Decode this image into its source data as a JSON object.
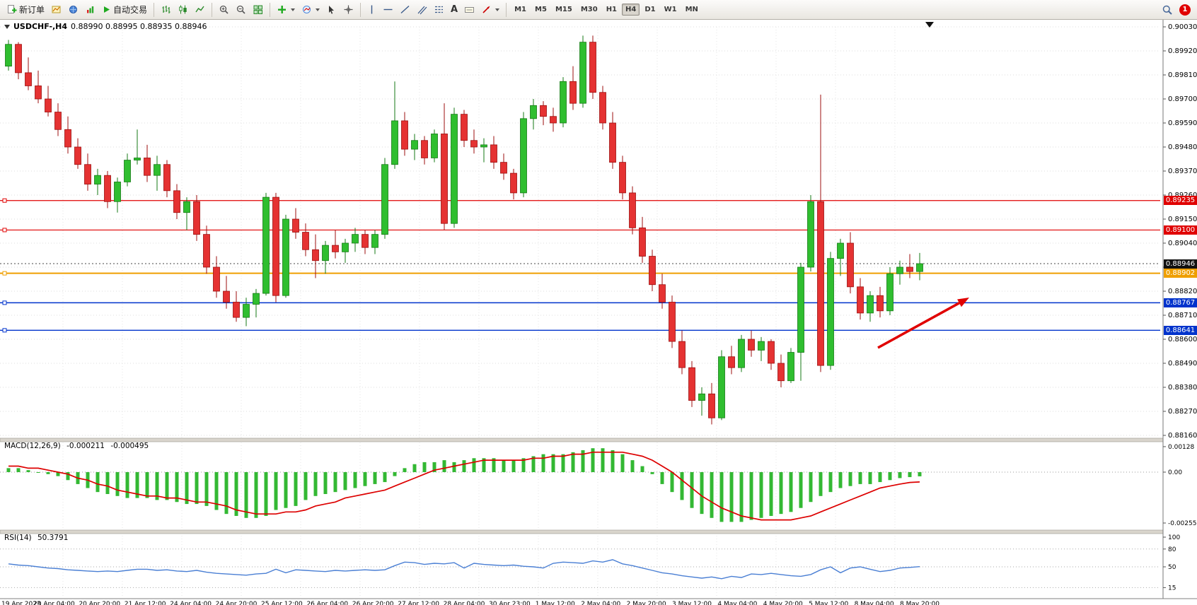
{
  "toolbar": {
    "new_order": "新订单",
    "auto_trading": "自动交易",
    "text_tool": "A",
    "timeframes": [
      "M1",
      "M5",
      "M15",
      "M30",
      "H1",
      "H4",
      "D1",
      "W1",
      "MN"
    ],
    "active_timeframe": "H4",
    "notification_count": "1"
  },
  "chart": {
    "title": "USDCHF-,H4",
    "ohlc": "0.88990 0.88995 0.88935 0.88946"
  },
  "levels": {
    "r1": {
      "label": "0.89235",
      "price": 0.89235,
      "color": "#e00000",
      "width": 1.2
    },
    "r2": {
      "label": "0.89100",
      "price": 0.891,
      "color": "#e00000",
      "width": 1.2
    },
    "pivot": {
      "label": "0.88902",
      "price": 0.88902,
      "color": "#ef9f00",
      "width": 2
    },
    "s1": {
      "label": "0.88767",
      "price": 0.88767,
      "color": "#0033cc",
      "width": 1.4
    },
    "s2": {
      "label": "0.88641",
      "price": 0.88641,
      "color": "#0033cc",
      "width": 1.4
    },
    "current": {
      "label": "0.88946",
      "price": 0.88946,
      "color": "#111111"
    }
  },
  "colors": {
    "up_fill": "#2fbe2f",
    "up_stroke": "#157a15",
    "down_fill": "#e53232",
    "down_stroke": "#9c0f0f",
    "macd_hist": "#33b833",
    "macd_signal": "#dd0000",
    "rsi_line": "#4a7fd4",
    "grid": "#dcdcdc",
    "arrow": "#e00000"
  },
  "chart_data": {
    "type": "candlestick",
    "symbol": "USDCHF-",
    "timeframe": "H4",
    "price_axis": [
      "0.90030",
      "0.89920",
      "0.89810",
      "0.89700",
      "0.89590",
      "0.89480",
      "0.89370",
      "0.89260",
      "0.89150",
      "0.89040",
      "0.88930",
      "0.88820",
      "0.88710",
      "0.88600",
      "0.88490",
      "0.88380",
      "0.88270",
      "0.88160"
    ],
    "times": [
      "19 Apr 2023",
      "20 Apr 04:00",
      "20 Apr 20:00",
      "21 Apr 12:00",
      "24 Apr 04:00",
      "24 Apr 20:00",
      "25 Apr 12:00",
      "26 Apr 04:00",
      "26 Apr 20:00",
      "27 Apr 12:00",
      "28 Apr 04:00",
      "30 Apr 23:00",
      "1 May 12:00",
      "2 May 04:00",
      "2 May 20:00",
      "3 May 12:00",
      "4 May 04:00",
      "4 May 20:00",
      "5 May 12:00",
      "8 May 04:00",
      "8 May 20:00"
    ],
    "ohlc": [
      [
        0.8985,
        0.8997,
        0.8983,
        0.8995
      ],
      [
        0.8995,
        0.8996,
        0.8979,
        0.8982
      ],
      [
        0.8982,
        0.8989,
        0.8974,
        0.8976
      ],
      [
        0.8976,
        0.8983,
        0.8968,
        0.897
      ],
      [
        0.897,
        0.8976,
        0.8962,
        0.8964
      ],
      [
        0.8964,
        0.8968,
        0.8953,
        0.8956
      ],
      [
        0.8956,
        0.8962,
        0.8945,
        0.8948
      ],
      [
        0.8948,
        0.8952,
        0.8938,
        0.894
      ],
      [
        0.894,
        0.8945,
        0.8928,
        0.8931
      ],
      [
        0.8931,
        0.8938,
        0.8926,
        0.8935
      ],
      [
        0.8935,
        0.8937,
        0.892,
        0.8923
      ],
      [
        0.8923,
        0.8934,
        0.8918,
        0.8932
      ],
      [
        0.8932,
        0.8945,
        0.893,
        0.8942
      ],
      [
        0.8942,
        0.8956,
        0.894,
        0.8943
      ],
      [
        0.8943,
        0.8949,
        0.8932,
        0.8935
      ],
      [
        0.8935,
        0.8944,
        0.8928,
        0.894
      ],
      [
        0.894,
        0.8942,
        0.8925,
        0.8928
      ],
      [
        0.8928,
        0.8931,
        0.8915,
        0.8918
      ],
      [
        0.8918,
        0.8925,
        0.891,
        0.8923
      ],
      [
        0.8923,
        0.8926,
        0.8905,
        0.8908
      ],
      [
        0.8908,
        0.8912,
        0.889,
        0.8893
      ],
      [
        0.8893,
        0.8898,
        0.8879,
        0.8882
      ],
      [
        0.8882,
        0.8889,
        0.8874,
        0.8877
      ],
      [
        0.8877,
        0.8882,
        0.8868,
        0.887
      ],
      [
        0.887,
        0.8879,
        0.8866,
        0.8876
      ],
      [
        0.8876,
        0.8883,
        0.887,
        0.8881
      ],
      [
        0.8881,
        0.8927,
        0.888,
        0.8925
      ],
      [
        0.8925,
        0.8927,
        0.8877,
        0.888
      ],
      [
        0.888,
        0.8917,
        0.8879,
        0.8915
      ],
      [
        0.8915,
        0.892,
        0.8906,
        0.8909
      ],
      [
        0.8909,
        0.8913,
        0.8898,
        0.8901
      ],
      [
        0.8901,
        0.8908,
        0.8888,
        0.8896
      ],
      [
        0.8896,
        0.8905,
        0.889,
        0.8903
      ],
      [
        0.8903,
        0.891,
        0.8897,
        0.89
      ],
      [
        0.89,
        0.8906,
        0.8895,
        0.8904
      ],
      [
        0.8904,
        0.8911,
        0.89,
        0.8908
      ],
      [
        0.8908,
        0.891,
        0.8899,
        0.8902
      ],
      [
        0.8902,
        0.891,
        0.8899,
        0.8908
      ],
      [
        0.8908,
        0.8943,
        0.8906,
        0.894
      ],
      [
        0.894,
        0.8978,
        0.8938,
        0.896
      ],
      [
        0.896,
        0.8964,
        0.8944,
        0.8947
      ],
      [
        0.8947,
        0.8954,
        0.8942,
        0.8951
      ],
      [
        0.8951,
        0.8953,
        0.894,
        0.8943
      ],
      [
        0.8943,
        0.8956,
        0.8941,
        0.8954
      ],
      [
        0.8954,
        0.8968,
        0.891,
        0.8913
      ],
      [
        0.8913,
        0.8966,
        0.8911,
        0.8963
      ],
      [
        0.8963,
        0.8965,
        0.8948,
        0.8951
      ],
      [
        0.8951,
        0.8956,
        0.8945,
        0.8948
      ],
      [
        0.8948,
        0.8952,
        0.8941,
        0.8949
      ],
      [
        0.8949,
        0.8953,
        0.8938,
        0.8941
      ],
      [
        0.8941,
        0.8945,
        0.8933,
        0.8936
      ],
      [
        0.8936,
        0.8938,
        0.8924,
        0.8927
      ],
      [
        0.8927,
        0.8964,
        0.8925,
        0.8961
      ],
      [
        0.8961,
        0.897,
        0.8956,
        0.8967
      ],
      [
        0.8967,
        0.8969,
        0.8958,
        0.8962
      ],
      [
        0.8962,
        0.8966,
        0.8955,
        0.8959
      ],
      [
        0.8959,
        0.898,
        0.8957,
        0.8978
      ],
      [
        0.8978,
        0.8985,
        0.8965,
        0.8968
      ],
      [
        0.8968,
        0.8999,
        0.8966,
        0.8996
      ],
      [
        0.8996,
        0.8999,
        0.897,
        0.8973
      ],
      [
        0.8973,
        0.8976,
        0.8956,
        0.8959
      ],
      [
        0.8959,
        0.8964,
        0.8938,
        0.8941
      ],
      [
        0.8941,
        0.8944,
        0.8924,
        0.8927
      ],
      [
        0.8927,
        0.893,
        0.8908,
        0.8911
      ],
      [
        0.8911,
        0.8916,
        0.8895,
        0.8898
      ],
      [
        0.8898,
        0.8901,
        0.8882,
        0.8885
      ],
      [
        0.8885,
        0.889,
        0.8874,
        0.8877
      ],
      [
        0.8877,
        0.888,
        0.8856,
        0.8859
      ],
      [
        0.8859,
        0.8864,
        0.8844,
        0.8847
      ],
      [
        0.8847,
        0.885,
        0.8829,
        0.8832
      ],
      [
        0.8832,
        0.8838,
        0.8825,
        0.8835
      ],
      [
        0.8835,
        0.884,
        0.8821,
        0.8824
      ],
      [
        0.8824,
        0.8855,
        0.8823,
        0.8852
      ],
      [
        0.8852,
        0.8857,
        0.8844,
        0.8847
      ],
      [
        0.8847,
        0.8862,
        0.8845,
        0.886
      ],
      [
        0.886,
        0.8864,
        0.8852,
        0.8855
      ],
      [
        0.8855,
        0.8861,
        0.885,
        0.8859
      ],
      [
        0.8859,
        0.886,
        0.8846,
        0.8849
      ],
      [
        0.8849,
        0.8853,
        0.8838,
        0.8841
      ],
      [
        0.8841,
        0.8856,
        0.884,
        0.8854
      ],
      [
        0.8854,
        0.8895,
        0.8841,
        0.8893
      ],
      [
        0.8893,
        0.8926,
        0.8891,
        0.8923
      ],
      [
        0.8923,
        0.8972,
        0.8845,
        0.8848
      ],
      [
        0.8848,
        0.89,
        0.8846,
        0.8897
      ],
      [
        0.8897,
        0.8906,
        0.8889,
        0.8904
      ],
      [
        0.8904,
        0.8909,
        0.8881,
        0.8884
      ],
      [
        0.8884,
        0.8888,
        0.8869,
        0.8872
      ],
      [
        0.8872,
        0.8882,
        0.8868,
        0.888
      ],
      [
        0.888,
        0.8884,
        0.887,
        0.8873
      ],
      [
        0.8873,
        0.8893,
        0.8871,
        0.889
      ],
      [
        0.889,
        0.8896,
        0.8885,
        0.8893
      ],
      [
        0.8893,
        0.8899,
        0.8888,
        0.8891
      ],
      [
        0.8891,
        0.88995,
        0.8887,
        0.88946
      ]
    ],
    "macd": {
      "label": "MACD(12,26,9)",
      "value_main": "-0.000211",
      "value_signal": "-0.000495",
      "axis": [
        "0.00128",
        "0.00",
        "-0.0025559"
      ],
      "histogram": [
        0.0002,
        0.0002,
        0.0001,
        0.0,
        -0.0001,
        -0.0002,
        -0.0004,
        -0.0006,
        -0.0008,
        -0.001,
        -0.0011,
        -0.0012,
        -0.0013,
        -0.0013,
        -0.0013,
        -0.0014,
        -0.0014,
        -0.0015,
        -0.0016,
        -0.0016,
        -0.0017,
        -0.0019,
        -0.0021,
        -0.0022,
        -0.0023,
        -0.0023,
        -0.0022,
        -0.0019,
        -0.0018,
        -0.0017,
        -0.0014,
        -0.0012,
        -0.0011,
        -0.001,
        -0.0009,
        -0.0008,
        -0.0007,
        -0.0006,
        -0.0005,
        -0.0002,
        0.0002,
        0.0004,
        0.0005,
        0.0005,
        0.0006,
        0.0005,
        0.0006,
        0.0007,
        0.0007,
        0.0007,
        0.0006,
        0.0006,
        0.0007,
        0.0008,
        0.0009,
        0.0009,
        0.0009,
        0.001,
        0.0011,
        0.0012,
        0.0012,
        0.0011,
        0.0009,
        0.0006,
        0.0003,
        -0.0001,
        -0.0006,
        -0.001,
        -0.0014,
        -0.0018,
        -0.0021,
        -0.0023,
        -0.0025,
        -0.0025,
        -0.0025,
        -0.0024,
        -0.0023,
        -0.0022,
        -0.0021,
        -0.002,
        -0.0018,
        -0.0015,
        -0.0012,
        -0.001,
        -0.0008,
        -0.0007,
        -0.0006,
        -0.0006,
        -0.0005,
        -0.0004,
        -0.0003,
        -0.00025,
        -0.000211
      ],
      "signal": [
        0.0003,
        0.0003,
        0.0002,
        0.0002,
        0.0001,
        0.0,
        -0.0001,
        -0.0003,
        -0.0004,
        -0.0006,
        -0.0007,
        -0.0009,
        -0.001,
        -0.0011,
        -0.0012,
        -0.0012,
        -0.0013,
        -0.0013,
        -0.0014,
        -0.0015,
        -0.0015,
        -0.0016,
        -0.0017,
        -0.0019,
        -0.002,
        -0.0021,
        -0.0021,
        -0.0021,
        -0.002,
        -0.002,
        -0.0019,
        -0.0017,
        -0.0016,
        -0.0015,
        -0.0013,
        -0.0012,
        -0.0011,
        -0.001,
        -0.0009,
        -0.0007,
        -0.0005,
        -0.0003,
        -0.0001,
        0.0001,
        0.0002,
        0.0003,
        0.0004,
        0.0005,
        0.0006,
        0.0006,
        0.0006,
        0.0006,
        0.0006,
        0.0007,
        0.0007,
        0.0008,
        0.0008,
        0.0009,
        0.0009,
        0.001,
        0.001,
        0.001,
        0.001,
        0.0009,
        0.0008,
        0.0006,
        0.0003,
        0.0,
        -0.0004,
        -0.0008,
        -0.0012,
        -0.0015,
        -0.0018,
        -0.002,
        -0.0022,
        -0.0023,
        -0.0024,
        -0.0024,
        -0.0024,
        -0.0024,
        -0.0023,
        -0.0022,
        -0.002,
        -0.0018,
        -0.0016,
        -0.0014,
        -0.0012,
        -0.001,
        -0.0008,
        -0.0007,
        -0.0006,
        -0.00052,
        -0.000495
      ]
    },
    "rsi": {
      "label": "RSI(14)",
      "value": "50.3791",
      "axis": [
        "100",
        "80",
        "50",
        "15"
      ],
      "values": [
        55,
        53,
        52,
        50,
        48,
        47,
        45,
        44,
        43,
        42,
        43,
        42,
        44,
        46,
        46,
        44,
        45,
        43,
        42,
        44,
        41,
        39,
        38,
        37,
        36,
        38,
        39,
        46,
        40,
        45,
        44,
        43,
        42,
        44,
        43,
        44,
        45,
        44,
        45,
        52,
        58,
        57,
        54,
        56,
        55,
        57,
        48,
        56,
        54,
        53,
        52,
        53,
        51,
        50,
        48,
        56,
        58,
        57,
        56,
        60,
        58,
        62,
        55,
        52,
        48,
        44,
        40,
        38,
        35,
        33,
        31,
        33,
        30,
        34,
        32,
        38,
        37,
        39,
        37,
        35,
        34,
        37,
        45,
        50,
        40,
        48,
        50,
        46,
        42,
        44,
        48,
        49,
        50.4
      ]
    }
  }
}
